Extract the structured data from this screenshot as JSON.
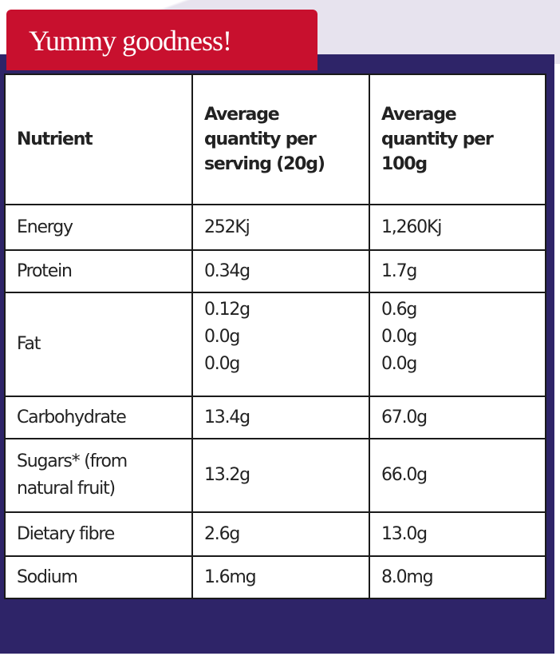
{
  "title": "Yummy goodness!",
  "table": {
    "header": [
      "Nutrient",
      "Average quantity per serving (20g)",
      "Average quantity per 100g"
    ],
    "rows": [
      [
        [
          "Energy"
        ],
        [
          "252Kj"
        ],
        [
          "1,260Kj"
        ]
      ],
      [
        [
          "Protein"
        ],
        [
          "0.34g"
        ],
        [
          "1.7g"
        ]
      ],
      [
        [
          "Fat"
        ],
        [
          "0.12g",
          "0.0g",
          "0.0g"
        ],
        [
          "0.6g",
          "0.0g",
          "0.0g"
        ]
      ],
      [
        [
          "Carbohydrate"
        ],
        [
          "13.4g"
        ],
        [
          "67.0g"
        ]
      ],
      [
        [
          "Sugars* (from natural fruit)"
        ],
        [
          "13.2g"
        ],
        [
          "66.0g"
        ]
      ],
      [
        [
          "Dietary fibre"
        ],
        [
          "2.6g"
        ],
        [
          "13.0g"
        ]
      ],
      [
        [
          "Sodium"
        ],
        [
          "1.6mg"
        ],
        [
          "8.0mg"
        ]
      ]
    ]
  }
}
